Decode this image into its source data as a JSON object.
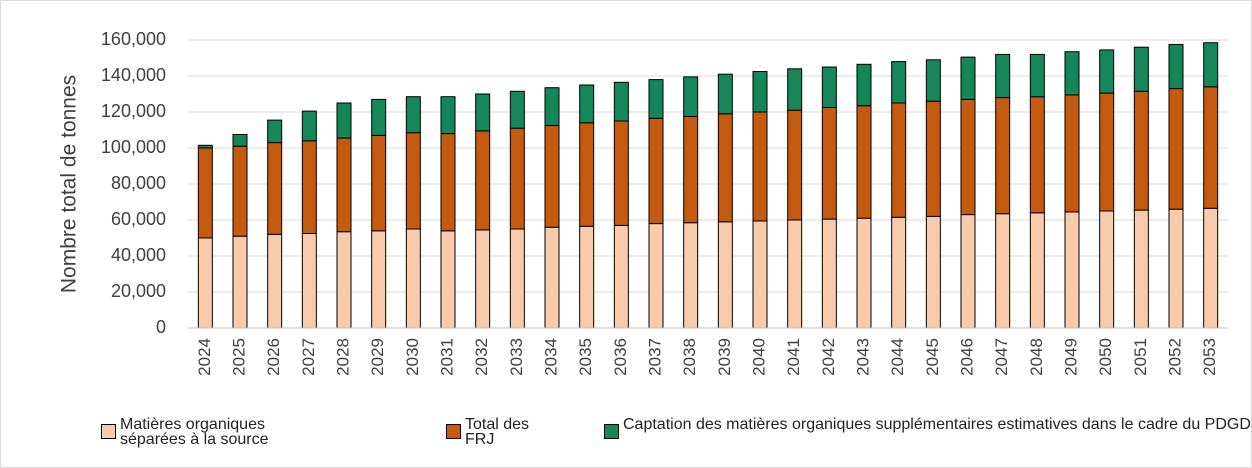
{
  "chart_data": {
    "type": "stacked_bar",
    "y_label": "Nombre total de tonnes",
    "categories": [
      "2024",
      "2025",
      "2026",
      "2027",
      "2028",
      "2029",
      "2030",
      "2031",
      "2032",
      "2033",
      "2034",
      "2035",
      "2036",
      "2037",
      "2038",
      "2039",
      "2040",
      "2041",
      "2042",
      "2043",
      "2044",
      "2045",
      "2046",
      "2047",
      "2048",
      "2049",
      "2050",
      "2051",
      "2052",
      "2053"
    ],
    "series": [
      {
        "name": "Matières organiques séparées à la source",
        "color": "#f8cbad",
        "values": [
          50000,
          51000,
          52000,
          52500,
          53500,
          54000,
          55000,
          54000,
          54500,
          55000,
          56000,
          56500,
          57000,
          58000,
          58500,
          59000,
          59500,
          60000,
          60500,
          61000,
          61500,
          62000,
          63000,
          63500,
          64000,
          64500,
          65000,
          65500,
          66000,
          66500
        ]
      },
      {
        "name": "Total des FRJ",
        "color": "#c55a11",
        "values": [
          50000,
          50000,
          51000,
          51500,
          52000,
          53000,
          53500,
          54000,
          55000,
          56000,
          56500,
          57500,
          58000,
          58500,
          59000,
          60000,
          60500,
          61000,
          62000,
          62500,
          63500,
          64000,
          64000,
          64500,
          64500,
          65000,
          65500,
          66000,
          67000,
          67500
        ]
      },
      {
        "name": "Captation des matières organiques supplémentaires estimatives dans le cadre du PDGDS",
        "color": "#15875a",
        "values": [
          1500,
          6500,
          12500,
          16500,
          19500,
          20000,
          20000,
          20500,
          20500,
          20500,
          21000,
          21000,
          21500,
          21500,
          22000,
          22000,
          22500,
          23000,
          22500,
          23000,
          23000,
          23000,
          23500,
          24000,
          23500,
          24000,
          24000,
          24500,
          24500,
          24500
        ]
      }
    ],
    "ylim": [
      0,
      160000
    ],
    "yticks": [
      0,
      {
        "value": 20000,
        "label": "20,000"
      },
      {
        "value": 40000,
        "label": "40,000"
      },
      {
        "value": 60000,
        "label": "60,000"
      },
      {
        "value": 80000,
        "label": "80,000"
      },
      {
        "value": 100000,
        "label": "100,000"
      },
      {
        "value": 120000,
        "label": "120,000"
      },
      {
        "value": 140000,
        "label": "140,000"
      },
      {
        "value": 160000,
        "label": "160,000"
      }
    ],
    "grid": true,
    "legend": "bottom"
  }
}
